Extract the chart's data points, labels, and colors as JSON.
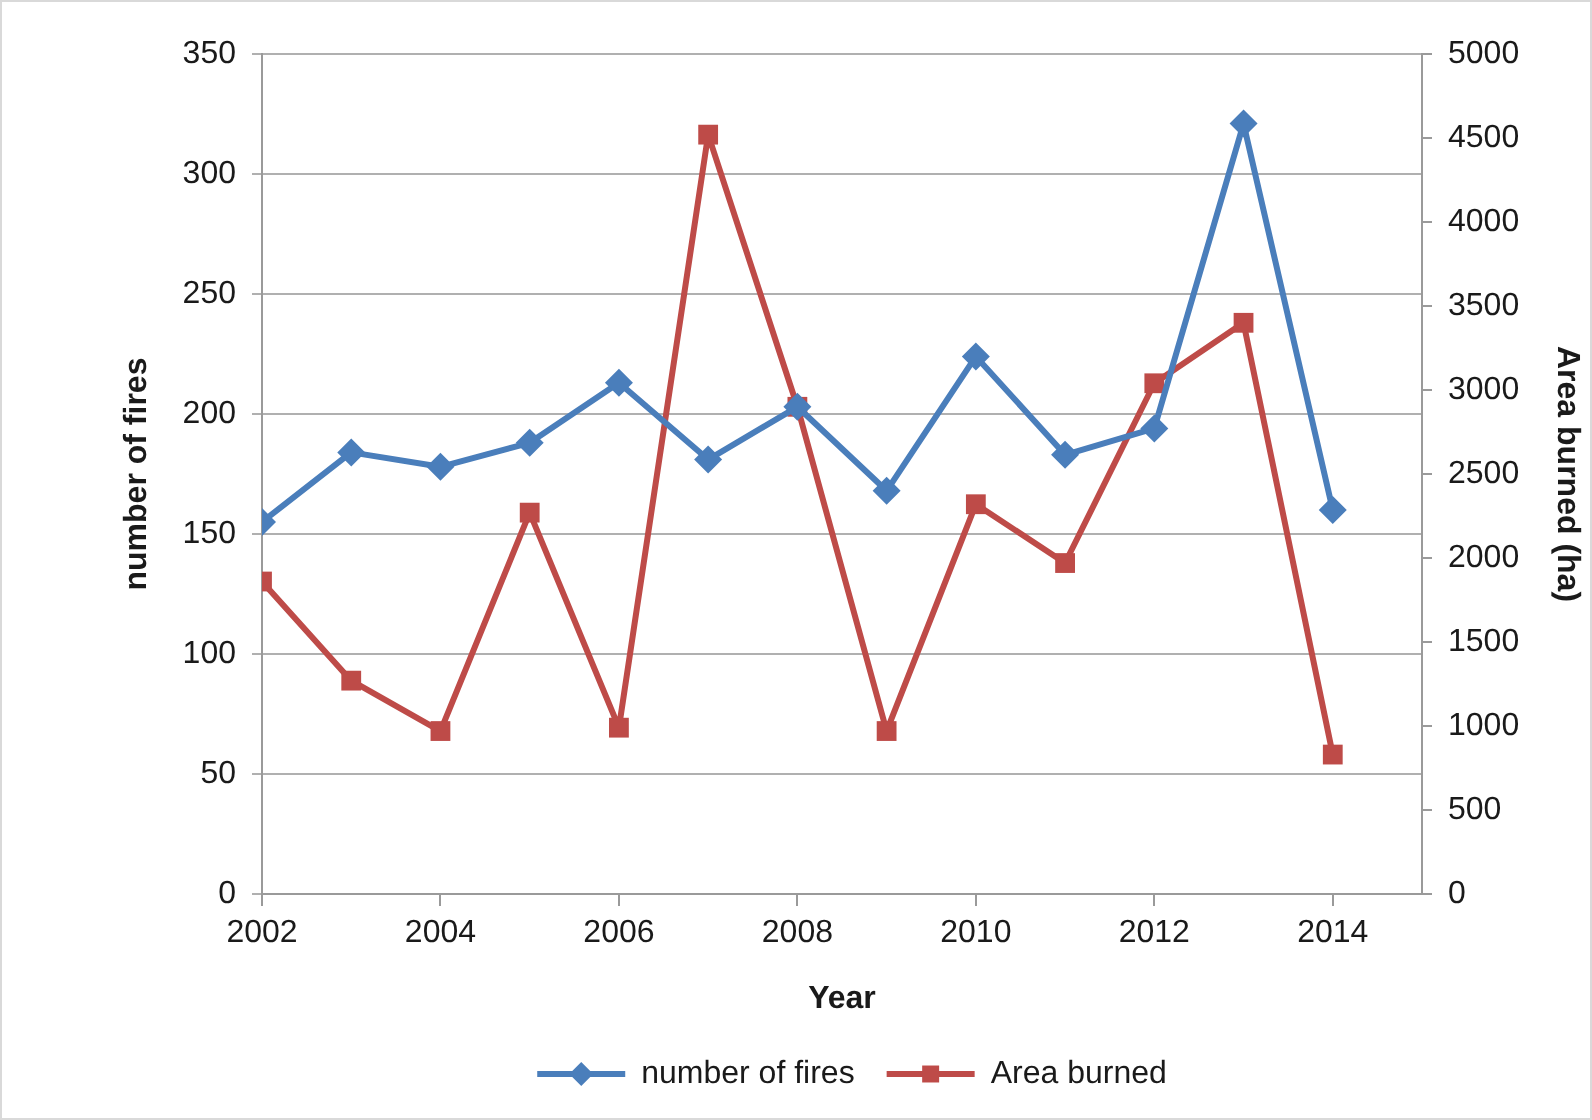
{
  "chart_data": {
    "type": "line",
    "xlabel": "Year",
    "ylabel": "number of fires",
    "y2label": "Area burned (ha)",
    "x": [
      2002,
      2003,
      2004,
      2005,
      2006,
      2007,
      2008,
      2009,
      2010,
      2011,
      2012,
      2013,
      2014
    ],
    "series": [
      {
        "name": "number of fires",
        "color": "#4a7ebb",
        "marker": "diamond",
        "values": [
          155,
          184,
          178,
          188,
          213,
          181,
          203,
          168,
          224,
          183,
          194,
          321,
          160
        ]
      },
      {
        "name": "Area burned",
        "color": "#be4b48",
        "marker": "square",
        "axis": "y2",
        "values": [
          1860,
          1270,
          970,
          2270,
          990,
          4520,
          2900,
          970,
          2320,
          1970,
          3040,
          3400,
          830
        ]
      }
    ],
    "xlim": [
      2002,
      2015
    ],
    "xticks": [
      2002,
      2004,
      2006,
      2008,
      2010,
      2012,
      2014
    ],
    "ylim": [
      0,
      350
    ],
    "yticks": [
      0,
      50,
      100,
      150,
      200,
      250,
      300,
      350
    ],
    "y2lim": [
      0,
      5000
    ],
    "y2ticks": [
      0,
      500,
      1000,
      1500,
      2000,
      2500,
      3000,
      3500,
      4000,
      4500,
      5000
    ],
    "grid": "y",
    "legend": "bottom"
  }
}
